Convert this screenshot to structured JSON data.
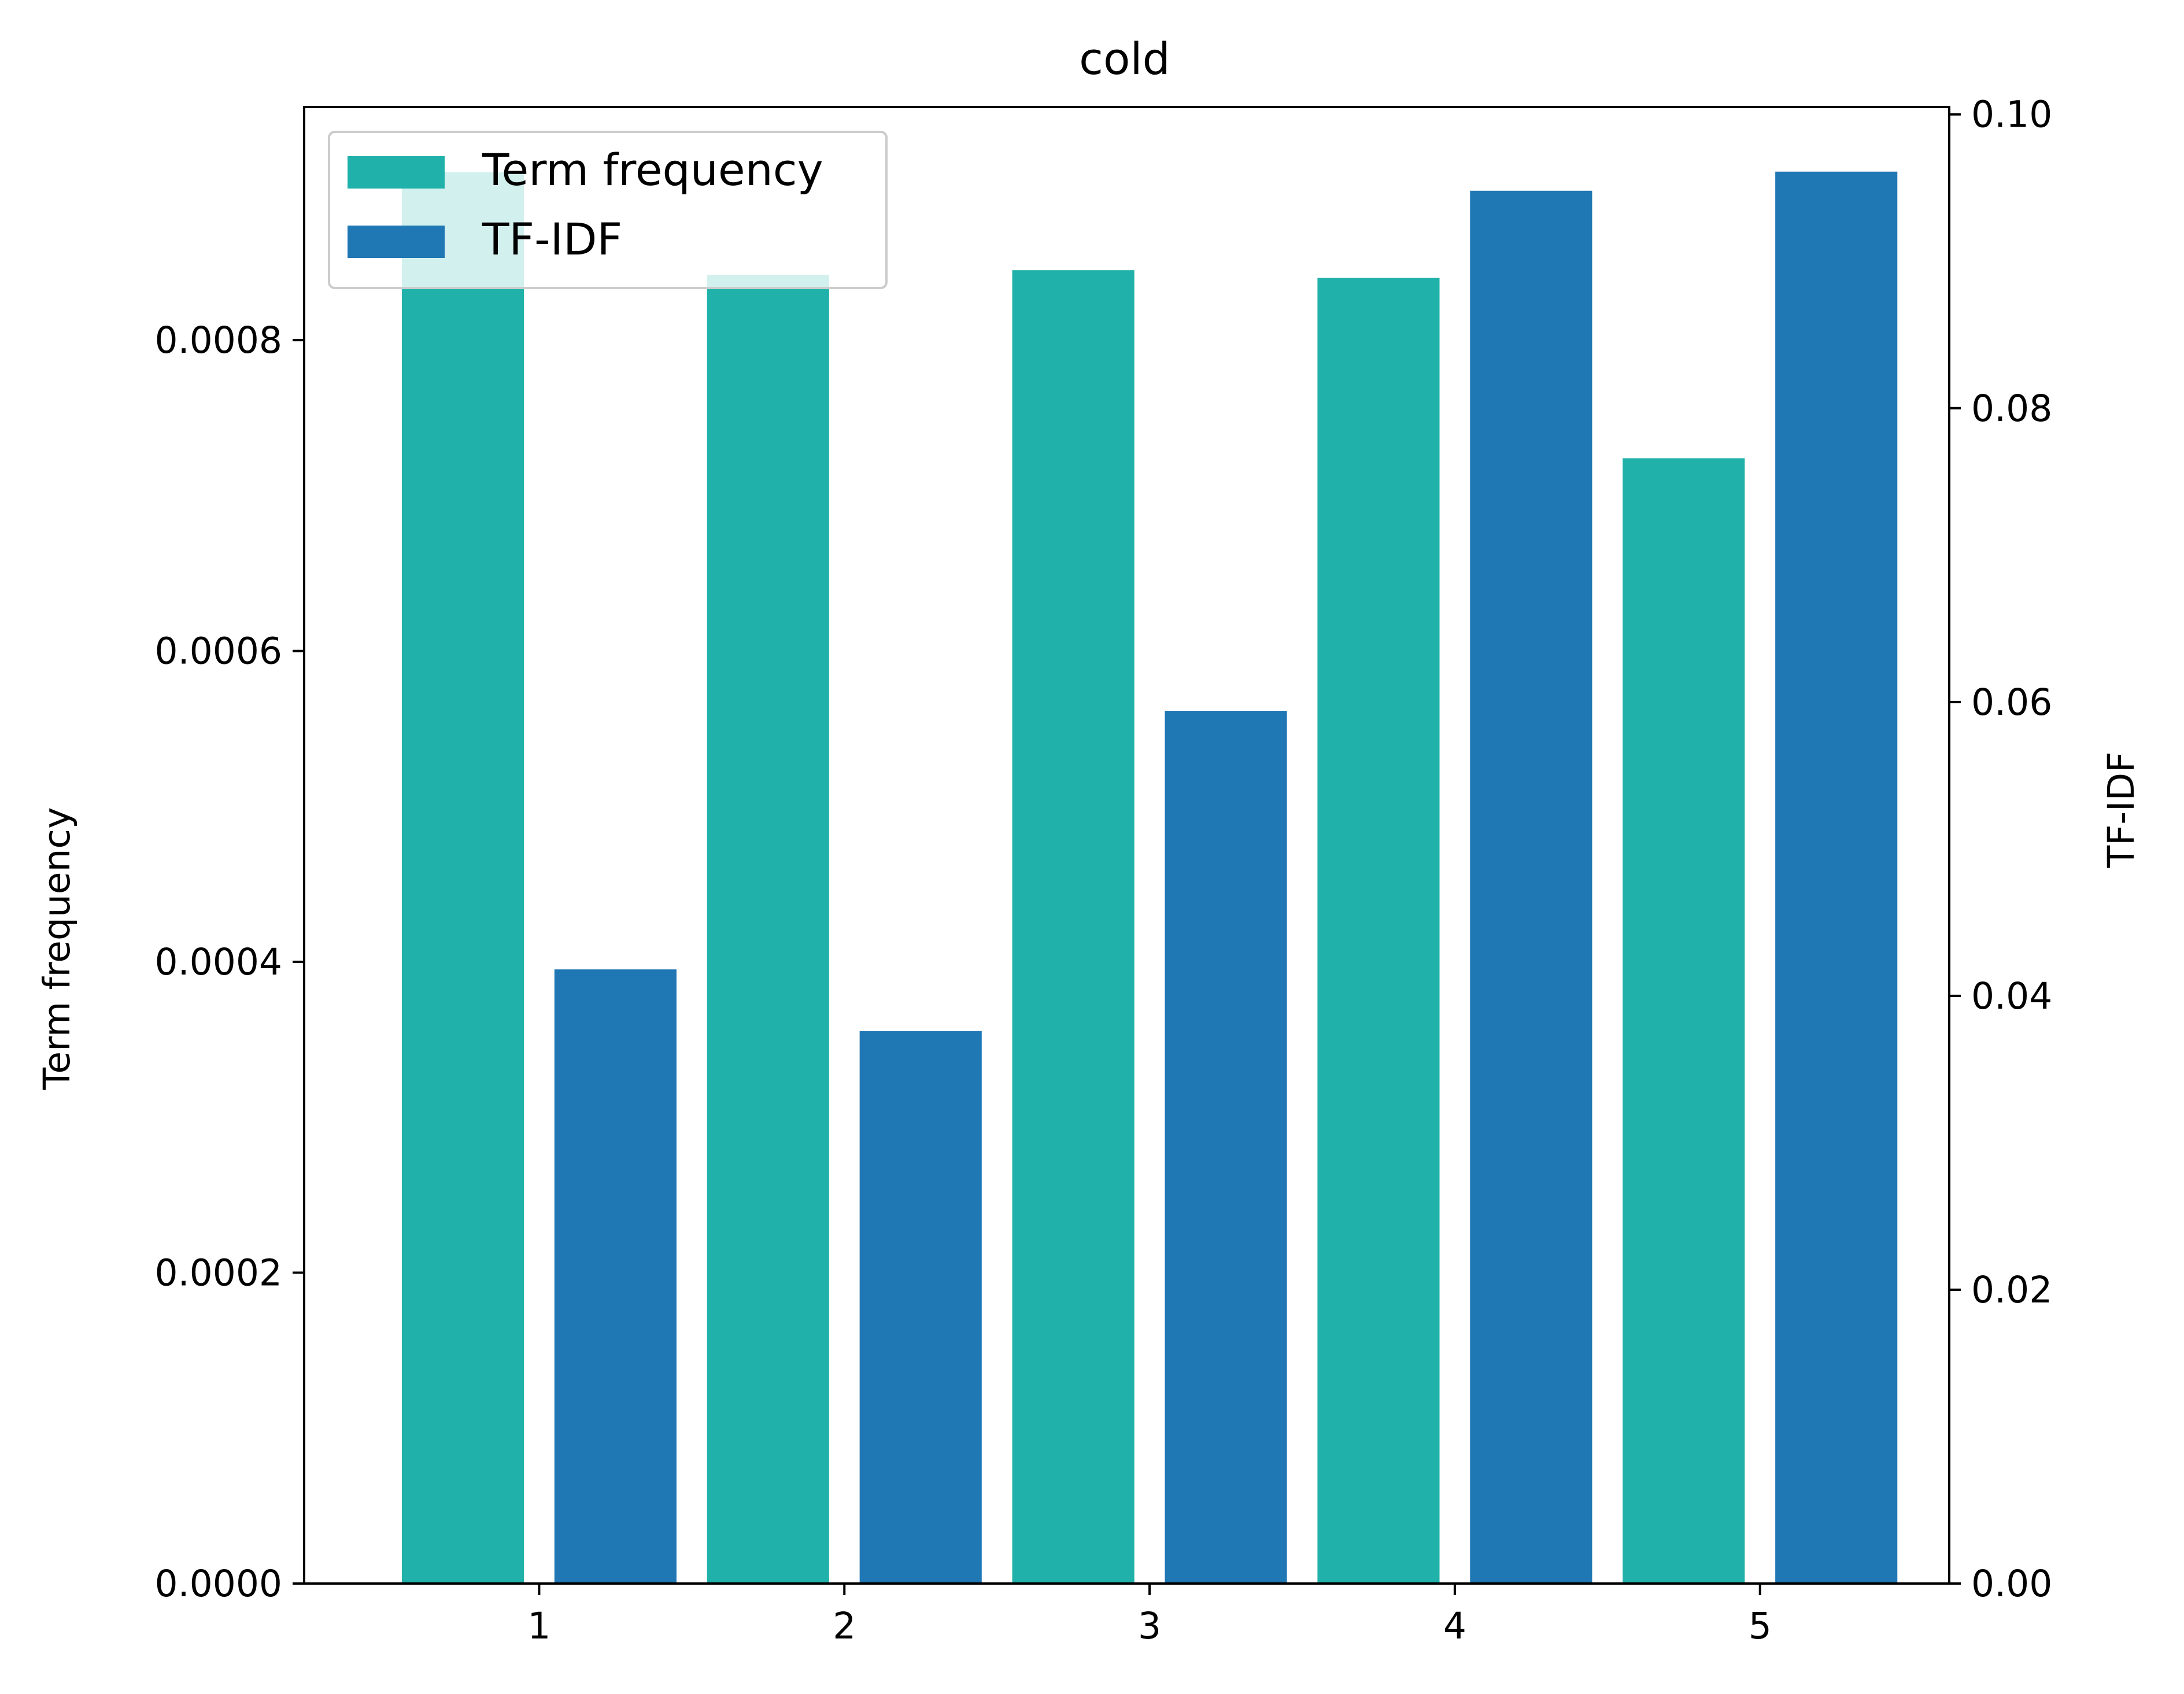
{
  "chart_data": {
    "type": "bar",
    "title": "cold",
    "categories": [
      "1",
      "2",
      "3",
      "4",
      "5"
    ],
    "x_ticks": [
      "1",
      "2",
      "3",
      "4",
      "5"
    ],
    "series": [
      {
        "name": "Term frequency",
        "axis": "left",
        "color": "#20b2aa",
        "values": [
          0.000908,
          0.000842,
          0.000845,
          0.00084,
          0.000724
        ]
      },
      {
        "name": "TF-IDF",
        "axis": "right",
        "color": "#1f77b4",
        "values": [
          0.0418,
          0.0376,
          0.0594,
          0.0948,
          0.0961
        ]
      }
    ],
    "y_left": {
      "label": "Term frequency",
      "lim": [
        0,
        0.00095
      ],
      "ticks": [
        0,
        0.0002,
        0.0004,
        0.0006,
        0.0008
      ],
      "tick_labels": [
        "0.0000",
        "0.0002",
        "0.0004",
        "0.0006",
        "0.0008"
      ]
    },
    "y_right": {
      "label": "TF-IDF",
      "lim": [
        0,
        0.1005
      ],
      "ticks": [
        0,
        0.02,
        0.04,
        0.06,
        0.08,
        0.1
      ],
      "tick_labels": [
        "0.00",
        "0.02",
        "0.04",
        "0.06",
        "0.08",
        "0.10"
      ]
    },
    "legend": {
      "position": "top-left",
      "entries": [
        "Term frequency",
        "TF-IDF"
      ]
    },
    "grid": false
  }
}
